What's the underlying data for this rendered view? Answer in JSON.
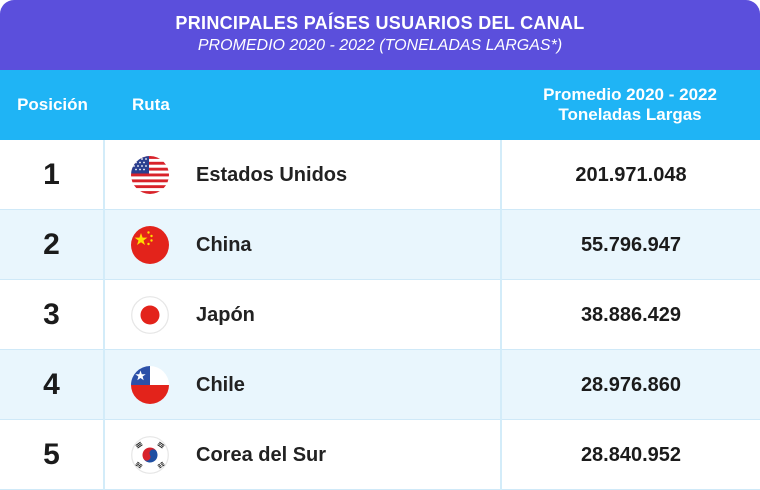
{
  "header": {
    "title": "PRINCIPALES PAÍSES USUARIOS DEL CANAL",
    "subtitle": "PROMEDIO 2020 - 2022 (TONELADAS LARGAS*)"
  },
  "columns": {
    "position": "Posición",
    "route": "Ruta",
    "value_line1": "Promedio 2020 - 2022",
    "value_line2": "Toneladas Largas"
  },
  "colors": {
    "title_bg": "#5b4fdc",
    "header_bg": "#1fb4f5",
    "alt_row_bg": "#e9f6fd"
  },
  "chart_data": {
    "type": "table",
    "title": "PRINCIPALES PAÍSES USUARIOS DEL CANAL",
    "subtitle": "PROMEDIO 2020 - 2022 (TONELADAS LARGAS*)",
    "columns": [
      "Posición",
      "Ruta",
      "Promedio 2020 - 2022 Toneladas Largas"
    ],
    "rows": [
      {
        "position": "1",
        "country": "Estados Unidos",
        "flag": "usa-flag-icon",
        "value": "201.971.048"
      },
      {
        "position": "2",
        "country": "China",
        "flag": "china-flag-icon",
        "value": "55.796.947"
      },
      {
        "position": "3",
        "country": "Japón",
        "flag": "japan-flag-icon",
        "value": "38.886.429"
      },
      {
        "position": "4",
        "country": "Chile",
        "flag": "chile-flag-icon",
        "value": "28.976.860"
      },
      {
        "position": "5",
        "country": "Corea del Sur",
        "flag": "south-korea-flag-icon",
        "value": "28.840.952"
      }
    ]
  }
}
